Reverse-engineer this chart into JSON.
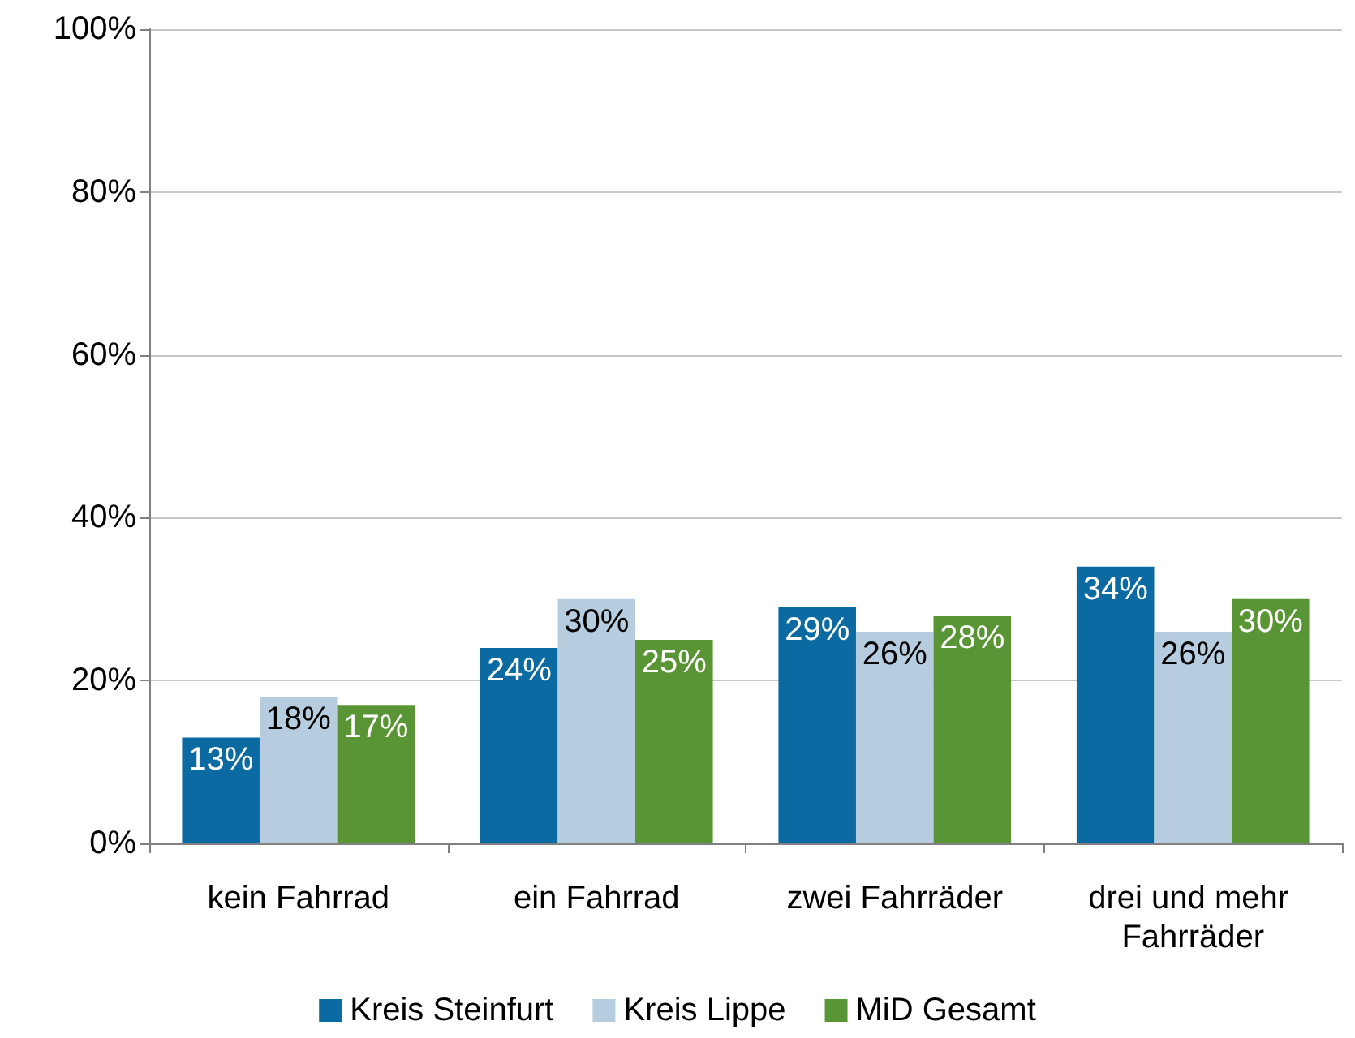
{
  "chart_data": {
    "type": "bar",
    "categories": [
      "kein Fahrrad",
      "ein Fahrrad",
      "zwei Fahrräder",
      "drei und mehr Fahrräder"
    ],
    "series": [
      {
        "name": "Kreis Steinfurt",
        "color": "#0a6aa1",
        "values": [
          13,
          24,
          29,
          34
        ],
        "value_labels": [
          "13%",
          "24%",
          "29%",
          "34%"
        ]
      },
      {
        "name": "Kreis Lippe",
        "color": "#b5cddf",
        "values": [
          18,
          30,
          26,
          26
        ],
        "value_labels": [
          "18%",
          "30%",
          "26%",
          "26%"
        ]
      },
      {
        "name": "MiD Gesamt",
        "color": "#5a9535",
        "values": [
          17,
          25,
          28,
          30
        ],
        "value_labels": [
          "17%",
          "25%",
          "28%",
          "30%"
        ]
      }
    ],
    "ylim": [
      0,
      100
    ],
    "yticks": [
      {
        "value": 0,
        "label": "0%"
      },
      {
        "value": 20,
        "label": "20%"
      },
      {
        "value": 40,
        "label": "40%"
      },
      {
        "value": 60,
        "label": "60%"
      },
      {
        "value": 80,
        "label": "80%"
      },
      {
        "value": 100,
        "label": "100%"
      }
    ],
    "grid": "y",
    "legend": "bottom"
  }
}
